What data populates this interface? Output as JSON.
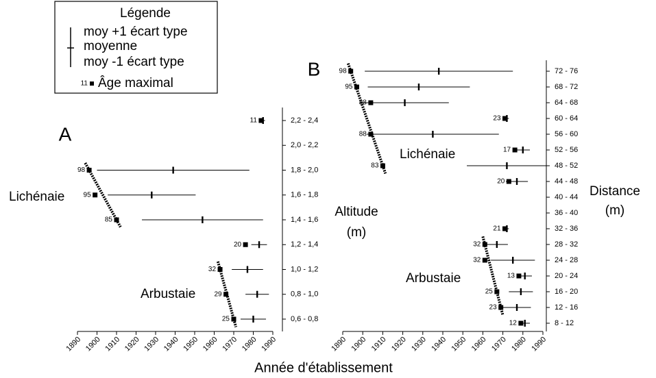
{
  "chart_data": [
    {
      "type": "range",
      "title": "A",
      "categories": [
        "2,2 - 2,4",
        "2,0 - 2,2",
        "1,8 - 2,0",
        "1,6 - 1,8",
        "1,4 - 1,6",
        "1,2 - 1,4",
        "1,0 - 1,2",
        "0,8 - 1,0",
        "0,6 - 0,8"
      ],
      "values": [
        1984,
        null,
        1896,
        1899,
        1910,
        1976,
        1963,
        1966,
        1970
      ],
      "ages": [
        11,
        null,
        98,
        95,
        85,
        20,
        32,
        29,
        25
      ],
      "means": [
        1985,
        null,
        1939,
        1928,
        1954,
        1983,
        1977,
        1982,
        1980
      ],
      "sds": [
        1,
        null,
        39,
        22.5,
        31,
        4,
        8,
        6,
        6.5
      ],
      "ylabel": [
        "Altitude",
        "(m)"
      ],
      "annotations": [
        "Lichénaie",
        "Arbustaie"
      ],
      "xlim": [
        1890,
        1990
      ],
      "xticks": [
        1890,
        1900,
        1910,
        1920,
        1930,
        1940,
        1950,
        1960,
        1970,
        1980,
        1990
      ]
    },
    {
      "type": "range",
      "title": "B",
      "categories": [
        "72 - 76",
        "68 - 72",
        "64 - 68",
        "60 - 64",
        "56 - 60",
        "52 - 56",
        "48 - 52",
        "44 - 48",
        "40 - 44",
        "36 - 40",
        "32 - 36",
        "28 - 32",
        "24 - 28",
        "20 - 24",
        "16 - 20",
        "12 - 16",
        "8 - 12"
      ],
      "values": [
        1894,
        1897,
        1904,
        1971,
        1904,
        1976,
        1910,
        1973,
        null,
        null,
        1971,
        1961,
        1961,
        1978,
        1967,
        1969,
        1979
      ],
      "ages": [
        98,
        95,
        88,
        23,
        88,
        17,
        83,
        20,
        null,
        null,
        21,
        32,
        32,
        13,
        25,
        23,
        12
      ],
      "means": [
        1938,
        1928,
        1921,
        1972,
        1935,
        1980,
        1972,
        1977,
        null,
        null,
        1972,
        1967,
        1975,
        1981,
        1979,
        1977,
        1981
      ],
      "sds": [
        37,
        25.5,
        22,
        1,
        33,
        3.5,
        20,
        5.5,
        null,
        null,
        1,
        5.5,
        11,
        3.5,
        6,
        7,
        2.5
      ],
      "ylabel": [
        "Distance",
        "(m)"
      ],
      "annotations": [
        "Lichénaie",
        "Arbustaie"
      ],
      "xlim": [
        1890,
        1990
      ],
      "xticks": [
        1890,
        1900,
        1910,
        1920,
        1930,
        1940,
        1950,
        1960,
        1970,
        1980,
        1990
      ]
    }
  ],
  "xlabel": "Année d'établissement",
  "legend": {
    "title": "Légende",
    "plus": "moy +1  écart type",
    "mean": "moyenne",
    "minus": "moy -1  écart type",
    "sample_age": 11,
    "max": "Âge maximal"
  }
}
